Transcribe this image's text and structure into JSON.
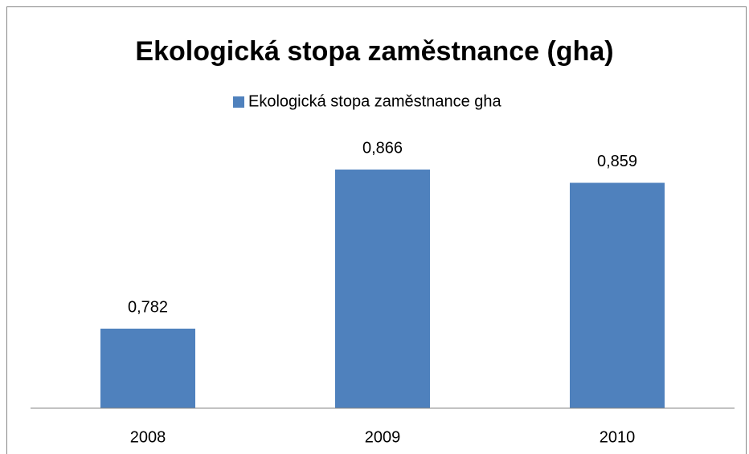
{
  "chart_data": {
    "type": "bar",
    "title": "Ekologická stopa zaměstnance (gha)",
    "series": [
      {
        "name": "Ekologická stopa zaměstnance gha",
        "color": "#4f81bd",
        "values": [
          0.782,
          0.866,
          0.859
        ],
        "value_labels": [
          "0,782",
          "0,866",
          "0,859"
        ]
      }
    ],
    "categories": [
      "2008",
      "2009",
      "2010"
    ],
    "ylim": [
      0.74,
      0.88
    ],
    "legend": "top"
  }
}
